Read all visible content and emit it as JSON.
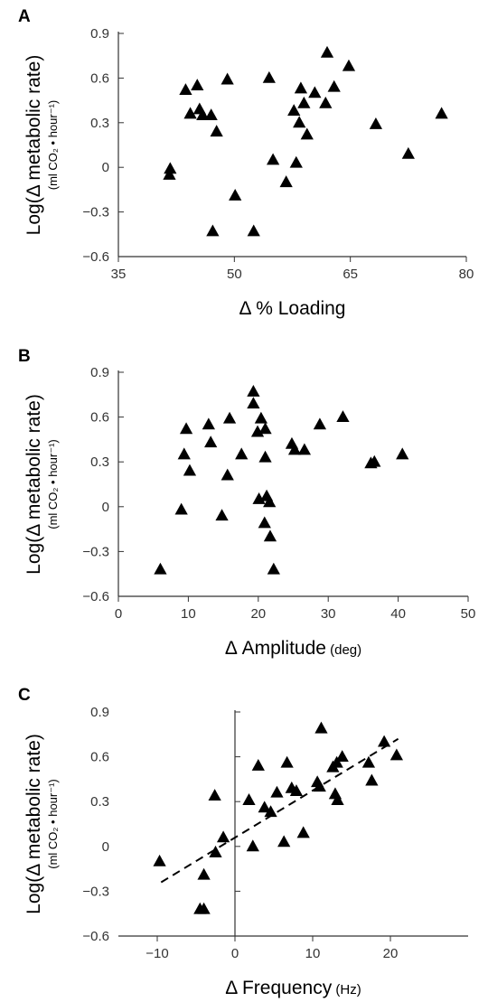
{
  "chart_data": [
    {
      "type": "scatter",
      "panel": "A",
      "ylabel": "Log(Δ metabolic rate)",
      "ylabel_sub": "(ml CO₂ • hour⁻¹)",
      "xlabel": "Δ % Loading",
      "xlabel_unit": "",
      "xlim": [
        35,
        80
      ],
      "ylim": [
        -0.6,
        0.9
      ],
      "xticks": [
        35,
        50,
        65,
        80
      ],
      "xtick_labels": [
        "35",
        "50",
        "65",
        "80"
      ],
      "yticks": [
        -0.6,
        -0.3,
        0,
        0.3,
        0.6,
        0.9
      ],
      "ytick_labels": [
        "−0.6",
        "−0.3",
        "0",
        "0.3",
        "0.6",
        "0.9"
      ],
      "axis_style": "box-left-bottom",
      "points": [
        {
          "x": 41.7,
          "y": -0.01
        },
        {
          "x": 41.6,
          "y": -0.05
        },
        {
          "x": 43.7,
          "y": 0.52
        },
        {
          "x": 44.3,
          "y": 0.36
        },
        {
          "x": 45.2,
          "y": 0.55
        },
        {
          "x": 45.5,
          "y": 0.39
        },
        {
          "x": 45.9,
          "y": 0.35
        },
        {
          "x": 47.0,
          "y": 0.35
        },
        {
          "x": 47.7,
          "y": 0.24
        },
        {
          "x": 47.2,
          "y": -0.43
        },
        {
          "x": 49.1,
          "y": 0.59
        },
        {
          "x": 50.1,
          "y": -0.19
        },
        {
          "x": 52.5,
          "y": -0.43
        },
        {
          "x": 54.5,
          "y": 0.6
        },
        {
          "x": 55.0,
          "y": 0.05
        },
        {
          "x": 56.7,
          "y": -0.1
        },
        {
          "x": 57.7,
          "y": 0.38
        },
        {
          "x": 58.0,
          "y": 0.03
        },
        {
          "x": 58.4,
          "y": 0.3
        },
        {
          "x": 58.6,
          "y": 0.53
        },
        {
          "x": 59.0,
          "y": 0.43
        },
        {
          "x": 59.4,
          "y": 0.22
        },
        {
          "x": 60.4,
          "y": 0.5
        },
        {
          "x": 61.8,
          "y": 0.43
        },
        {
          "x": 62.0,
          "y": 0.77
        },
        {
          "x": 62.9,
          "y": 0.54
        },
        {
          "x": 64.8,
          "y": 0.68
        },
        {
          "x": 68.3,
          "y": 0.29
        },
        {
          "x": 72.5,
          "y": 0.09
        },
        {
          "x": 76.8,
          "y": 0.36
        }
      ]
    },
    {
      "type": "scatter",
      "panel": "B",
      "ylabel": "Log(Δ metabolic rate)",
      "ylabel_sub": "(ml CO₂ • hour⁻¹)",
      "xlabel": "Δ Amplitude",
      "xlabel_unit": "(deg)",
      "xlim": [
        0,
        50
      ],
      "ylim": [
        -0.6,
        0.9
      ],
      "xticks": [
        0,
        10,
        20,
        30,
        40,
        50
      ],
      "xtick_labels": [
        "0",
        "10",
        "20",
        "30",
        "40",
        "50"
      ],
      "yticks": [
        -0.6,
        -0.3,
        0,
        0.3,
        0.6,
        0.9
      ],
      "ytick_labels": [
        "−0.6",
        "−0.3",
        "0",
        "0.3",
        "0.6",
        "0.9"
      ],
      "axis_style": "box-left-bottom",
      "points": [
        {
          "x": 6.0,
          "y": -0.42
        },
        {
          "x": 9.0,
          "y": -0.02
        },
        {
          "x": 9.4,
          "y": 0.35
        },
        {
          "x": 9.7,
          "y": 0.52
        },
        {
          "x": 10.2,
          "y": 0.24
        },
        {
          "x": 12.9,
          "y": 0.55
        },
        {
          "x": 13.2,
          "y": 0.43
        },
        {
          "x": 14.8,
          "y": -0.06
        },
        {
          "x": 15.6,
          "y": 0.21
        },
        {
          "x": 15.9,
          "y": 0.59
        },
        {
          "x": 17.6,
          "y": 0.35
        },
        {
          "x": 19.3,
          "y": 0.77
        },
        {
          "x": 19.3,
          "y": 0.69
        },
        {
          "x": 19.9,
          "y": 0.5
        },
        {
          "x": 20.1,
          "y": 0.05
        },
        {
          "x": 20.4,
          "y": 0.59
        },
        {
          "x": 20.9,
          "y": -0.11
        },
        {
          "x": 21.0,
          "y": 0.52
        },
        {
          "x": 21.0,
          "y": 0.33
        },
        {
          "x": 21.2,
          "y": 0.07
        },
        {
          "x": 21.6,
          "y": 0.03
        },
        {
          "x": 21.7,
          "y": -0.2
        },
        {
          "x": 22.2,
          "y": -0.42
        },
        {
          "x": 24.8,
          "y": 0.42
        },
        {
          "x": 25.2,
          "y": 0.38
        },
        {
          "x": 26.6,
          "y": 0.38
        },
        {
          "x": 28.8,
          "y": 0.55
        },
        {
          "x": 32.1,
          "y": 0.6
        },
        {
          "x": 36.1,
          "y": 0.29
        },
        {
          "x": 36.6,
          "y": 0.3
        },
        {
          "x": 40.6,
          "y": 0.35
        }
      ]
    },
    {
      "type": "scatter",
      "panel": "C",
      "ylabel": "Log(Δ metabolic rate)",
      "ylabel_sub": "(ml CO₂ • hour⁻¹)",
      "xlabel": "Δ Frequency",
      "xlabel_unit": "(Hz)",
      "xlim": [
        -15,
        30
      ],
      "ylim": [
        -0.6,
        0.9
      ],
      "xticks": [
        -10,
        0,
        10,
        20
      ],
      "xtick_labels": [
        "−10",
        "0",
        "10",
        "20"
      ],
      "yticks": [
        -0.6,
        -0.3,
        0,
        0.3,
        0.6,
        0.9
      ],
      "ytick_labels": [
        "−0.6",
        "−0.3",
        "0",
        "0.3",
        "0.6",
        "0.9"
      ],
      "axis_style": "crossed-at-zero",
      "trendline": {
        "x": [
          -9.5,
          21.0
        ],
        "y": [
          -0.24,
          0.72
        ],
        "style": "dashed"
      },
      "points": [
        {
          "x": -9.7,
          "y": -0.1
        },
        {
          "x": -4.5,
          "y": -0.42
        },
        {
          "x": -4.0,
          "y": -0.42
        },
        {
          "x": -4.0,
          "y": -0.19
        },
        {
          "x": -2.6,
          "y": 0.34
        },
        {
          "x": -2.5,
          "y": -0.04
        },
        {
          "x": -1.5,
          "y": 0.06
        },
        {
          "x": 1.8,
          "y": 0.31
        },
        {
          "x": 2.3,
          "y": 0.0
        },
        {
          "x": 3.0,
          "y": 0.54
        },
        {
          "x": 3.8,
          "y": 0.26
        },
        {
          "x": 4.6,
          "y": 0.23
        },
        {
          "x": 5.4,
          "y": 0.36
        },
        {
          "x": 6.3,
          "y": 0.03
        },
        {
          "x": 6.7,
          "y": 0.56
        },
        {
          "x": 7.3,
          "y": 0.39
        },
        {
          "x": 7.9,
          "y": 0.37
        },
        {
          "x": 8.8,
          "y": 0.09
        },
        {
          "x": 10.6,
          "y": 0.43
        },
        {
          "x": 11.1,
          "y": 0.79
        },
        {
          "x": 10.9,
          "y": 0.4
        },
        {
          "x": 12.6,
          "y": 0.53
        },
        {
          "x": 12.9,
          "y": 0.35
        },
        {
          "x": 13.1,
          "y": 0.56
        },
        {
          "x": 13.2,
          "y": 0.31
        },
        {
          "x": 13.8,
          "y": 0.6
        },
        {
          "x": 17.2,
          "y": 0.56
        },
        {
          "x": 17.6,
          "y": 0.44
        },
        {
          "x": 19.2,
          "y": 0.7
        },
        {
          "x": 20.8,
          "y": 0.61
        }
      ]
    }
  ]
}
